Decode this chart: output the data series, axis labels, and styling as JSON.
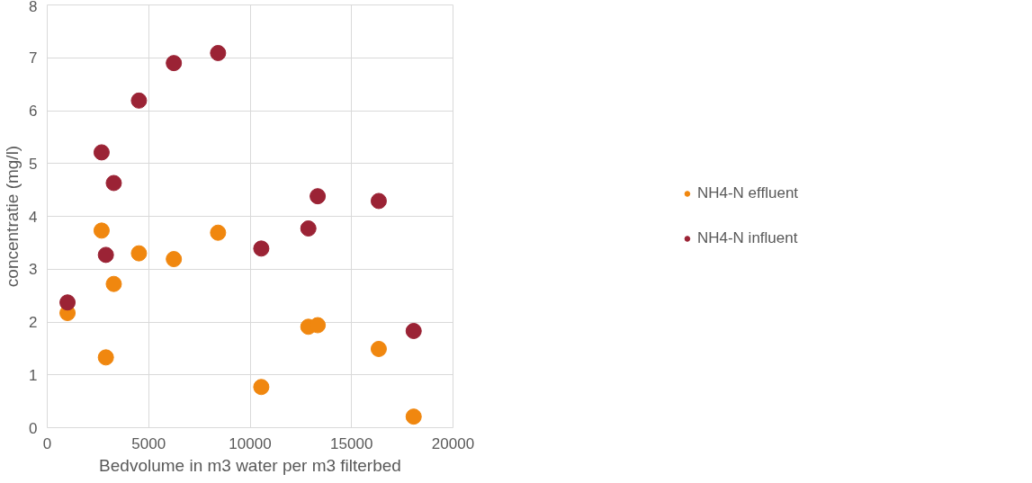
{
  "chart_data": {
    "type": "scatter",
    "xlabel": "Bedvolume in m3 water per m3 filterbed",
    "ylabel": "concentratie (mg/l)",
    "xlim": [
      0,
      20000
    ],
    "xticks": [
      0,
      5000,
      10000,
      15000,
      20000
    ],
    "ylim": [
      0,
      8
    ],
    "yticks": [
      0,
      1,
      2,
      3,
      4,
      5,
      6,
      7,
      8
    ],
    "grid": true,
    "legend": "right",
    "marker": "circle",
    "x": [
      1000,
      2680,
      2890,
      3280,
      4520,
      6240,
      8420,
      10550,
      12870,
      13330,
      16340,
      18060
    ],
    "series": [
      {
        "name": "NH4-N effluent",
        "color": "#f0870f",
        "values": [
          2.17,
          3.73,
          1.33,
          2.72,
          3.3,
          3.19,
          3.69,
          0.77,
          1.91,
          1.94,
          1.49,
          0.21
        ]
      },
      {
        "name": "NH4-N influent",
        "color": "#9b2335",
        "values": [
          2.37,
          5.21,
          3.27,
          4.63,
          6.19,
          6.9,
          7.09,
          3.39,
          3.77,
          4.38,
          4.29,
          1.83
        ]
      }
    ]
  }
}
